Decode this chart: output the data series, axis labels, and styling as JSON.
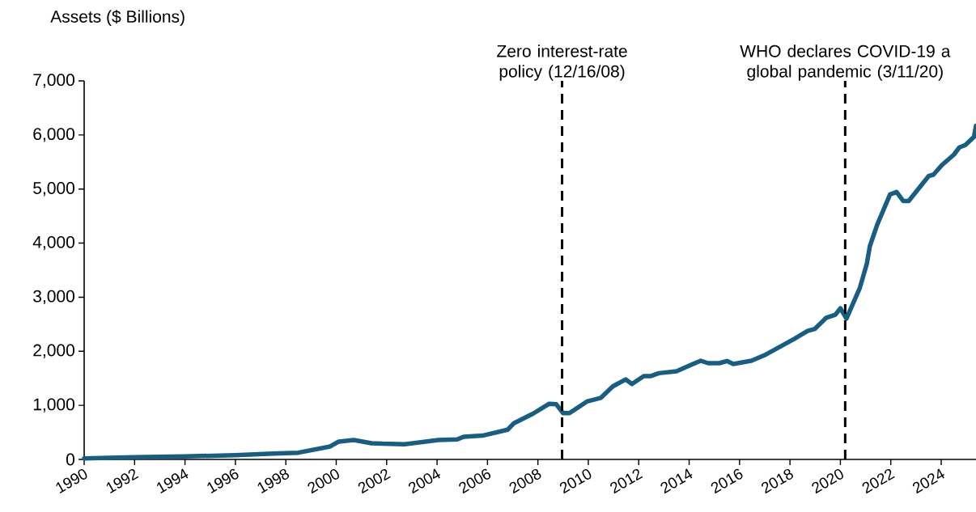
{
  "chart_data": {
    "type": "line",
    "ylabel": "Assets ($ Billions)",
    "x": [
      1990,
      1992,
      1994,
      1996,
      1997.5,
      1998.5,
      1999.76,
      2000.1,
      2000.7,
      2001.4,
      2001.85,
      2002.7,
      2004.05,
      2004.8,
      2005.05,
      2005.8,
      2006.8,
      2007.05,
      2007.8,
      2008.45,
      2008.73,
      2009.0,
      2009.25,
      2009.94,
      2010.5,
      2010.97,
      2011.48,
      2011.73,
      2012.2,
      2012.46,
      2012.8,
      2013.5,
      2014.06,
      2014.46,
      2014.75,
      2015.2,
      2015.5,
      2015.75,
      2016.47,
      2016.98,
      2018.19,
      2018.7,
      2018.99,
      2019.44,
      2019.8,
      2020.0,
      2020.24,
      2020.77,
      2021.05,
      2021.17,
      2021.46,
      2021.97,
      2022.23,
      2022.49,
      2022.71,
      2023.5,
      2023.69,
      2024.03,
      2024.5,
      2024.72,
      2024.96,
      2025.3,
      2025.38
    ],
    "series": [
      {
        "color": "#175e82",
        "values": [
          20,
          40,
          55,
          80,
          110,
          125,
          240,
          330,
          360,
          300,
          290,
          280,
          360,
          370,
          420,
          440,
          550,
          670,
          845,
          1030,
          1020,
          855,
          855,
          1070,
          1140,
          1350,
          1480,
          1395,
          1540,
          1540,
          1595,
          1630,
          1745,
          1825,
          1780,
          1780,
          1820,
          1765,
          1825,
          1925,
          2235,
          2375,
          2415,
          2620,
          2675,
          2795,
          2605,
          3170,
          3620,
          3945,
          4340,
          4900,
          4945,
          4780,
          4780,
          5240,
          5265,
          5445,
          5635,
          5770,
          5815,
          5965,
          6170
        ]
      }
    ],
    "xlim": [
      1990,
      2025.38
    ],
    "xticks": [
      1990,
      1992,
      1994,
      1996,
      1998,
      2000,
      2002,
      2004,
      2006,
      2008,
      2010,
      2012,
      2014,
      2016,
      2018,
      2020,
      2022,
      2024
    ],
    "ylim": [
      0,
      7000
    ],
    "yticks": [
      {
        "value": 0,
        "label": "0"
      },
      {
        "value": 1000,
        "label": "1,000"
      },
      {
        "value": 2000,
        "label": "2,000"
      },
      {
        "value": 3000,
        "label": "3,000"
      },
      {
        "value": 4000,
        "label": "4,000"
      },
      {
        "value": 5000,
        "label": "5,000"
      },
      {
        "value": 6000,
        "label": "6,000"
      },
      {
        "value": 7000,
        "label": "7,000"
      }
    ],
    "ref_lines": [
      {
        "axis": "x",
        "value": 2008.96,
        "label": "Zero interest-rate policy (12/16/08)",
        "color": "#000000",
        "line_style": "dashed"
      },
      {
        "axis": "x",
        "value": 2020.19,
        "label": "WHO declares COVID-19 a global pandemic (3/11/20)",
        "color": "#000000",
        "line_style": "dashed"
      }
    ],
    "grid": false,
    "marker": "none",
    "line_style": "solid"
  }
}
